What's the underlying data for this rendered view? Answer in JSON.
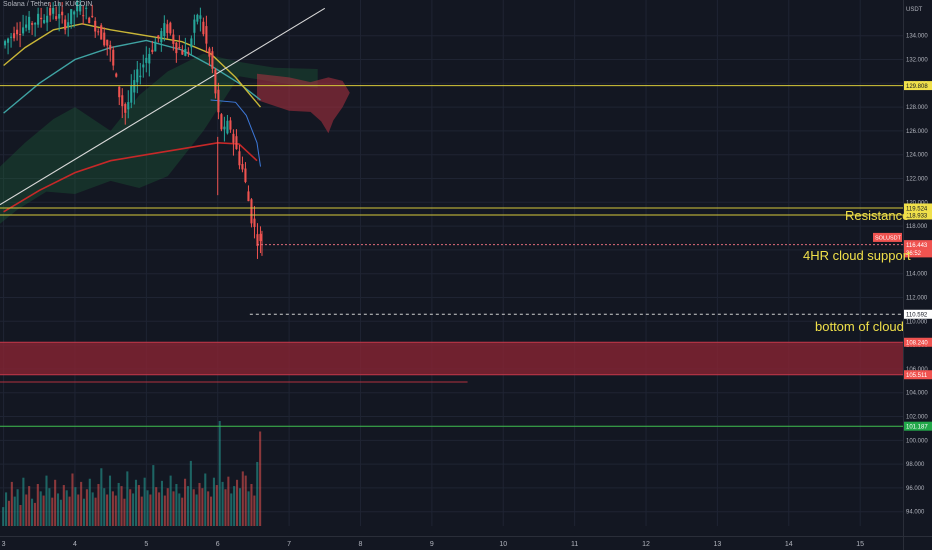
{
  "header": {
    "symbol_title": "Solana / Tether, 1h, KUCOIN",
    "currency": "USDT"
  },
  "colors": {
    "background": "#131722",
    "grid": "#1f2433",
    "up": "#26a69a",
    "down": "#ef5350",
    "annotation": "#f0e04a",
    "level_line": "#d7c93a",
    "support_zone": "#8a2433",
    "trendline": "#d8d8d8",
    "ma_red": "#c62828",
    "ma_yellow": "#c9b637",
    "ma_teal": "#3fa3a3"
  },
  "chart_data": {
    "type": "candlestick",
    "title": "Solana / Tether, 1h, KUCOIN",
    "y_axis": {
      "unit": "USDT",
      "min": 92.8,
      "max": 137.0,
      "ticks": [
        94,
        96,
        98,
        100,
        102,
        104,
        106,
        108,
        110,
        112,
        114,
        116,
        118,
        120,
        122,
        124,
        126,
        128,
        130,
        132,
        134
      ]
    },
    "x_axis": {
      "min": 2.95,
      "max": 15.6,
      "ticks": [
        "3",
        "4",
        "5",
        "6",
        "7",
        "8",
        "9",
        "10",
        "11",
        "12",
        "13",
        "14",
        "15"
      ]
    },
    "price_labels": [
      {
        "text": "129.808",
        "value": 129.808,
        "style": "yellow"
      },
      {
        "text": "119.524",
        "value": 119.524,
        "style": "yellow"
      },
      {
        "text": "118.933",
        "value": 118.933,
        "style": "yellow"
      },
      {
        "text": "SOLUSDT",
        "value": 117.05,
        "style": "red"
      },
      {
        "text": "116.443",
        "value": 116.443,
        "style": "red"
      },
      {
        "text": "36:52",
        "value": 115.75,
        "style": "red"
      },
      {
        "text": "110.592",
        "value": 110.592,
        "style": "white"
      },
      {
        "text": "108.240",
        "value": 108.24,
        "style": "red"
      },
      {
        "text": "105.511",
        "value": 105.511,
        "style": "red"
      },
      {
        "text": "101.187",
        "value": 101.187,
        "style": "green"
      }
    ],
    "horizontal_levels": [
      {
        "value": 129.808,
        "style": "yellow-solid"
      },
      {
        "value": 119.524,
        "style": "yellow-solid"
      },
      {
        "value": 118.933,
        "style": "yellow-solid"
      },
      {
        "value": 116.443,
        "style": "red-dotted"
      },
      {
        "value": 110.592,
        "style": "white-dashed"
      },
      {
        "value": 101.187,
        "style": "green-solid"
      }
    ],
    "support_zone": [
      105.511,
      108.24
    ],
    "annotations": [
      "Resistance",
      "4HR cloud support",
      "bottom of cloud"
    ],
    "price_path": [
      [
        3.0,
        133.2
      ],
      [
        3.2,
        134.5
      ],
      [
        3.45,
        135.2
      ],
      [
        3.7,
        136.0
      ],
      [
        3.9,
        135.0
      ],
      [
        4.05,
        136.5
      ],
      [
        4.2,
        135.8
      ],
      [
        4.35,
        134.5
      ],
      [
        4.5,
        133.0
      ],
      [
        4.62,
        129.5
      ],
      [
        4.72,
        127.5
      ],
      [
        4.85,
        130.0
      ],
      [
        5.0,
        132.0
      ],
      [
        5.15,
        133.5
      ],
      [
        5.3,
        134.8
      ],
      [
        5.45,
        133.0
      ],
      [
        5.6,
        132.5
      ],
      [
        5.75,
        136.2
      ],
      [
        5.85,
        133.5
      ],
      [
        5.95,
        131.0
      ],
      [
        6.0,
        128.5
      ],
      [
        6.05,
        126.5
      ],
      [
        6.12,
        125.8
      ],
      [
        6.18,
        126.8
      ],
      [
        6.24,
        125.2
      ],
      [
        6.3,
        124.0
      ],
      [
        6.38,
        122.5
      ],
      [
        6.44,
        120.5
      ],
      [
        6.5,
        118.5
      ],
      [
        6.56,
        117.2
      ],
      [
        6.6,
        116.6
      ],
      [
        6.62,
        116.44
      ]
    ],
    "ma_red": [
      [
        3.0,
        119.2
      ],
      [
        3.5,
        121.0
      ],
      [
        4.0,
        122.5
      ],
      [
        4.5,
        123.5
      ],
      [
        5.0,
        124.0
      ],
      [
        5.5,
        124.5
      ],
      [
        6.0,
        125.0
      ],
      [
        6.3,
        124.9
      ],
      [
        6.55,
        123.5
      ]
    ],
    "ma_teal": [
      [
        3.0,
        127.5
      ],
      [
        3.5,
        130.0
      ],
      [
        4.0,
        132.0
      ],
      [
        4.5,
        133.0
      ],
      [
        5.0,
        133.6
      ],
      [
        5.5,
        132.8
      ],
      [
        5.9,
        131.5
      ],
      [
        6.3,
        130.0
      ],
      [
        6.6,
        128.6
      ]
    ],
    "ma_yellow": [
      [
        3.0,
        131.5
      ],
      [
        3.3,
        133.0
      ],
      [
        3.7,
        134.5
      ],
      [
        4.1,
        135.0
      ],
      [
        4.5,
        134.5
      ],
      [
        5.0,
        134.0
      ],
      [
        5.5,
        133.5
      ],
      [
        5.9,
        132.5
      ],
      [
        6.25,
        130.5
      ],
      [
        6.6,
        128.0
      ]
    ],
    "trendline": [
      [
        2.95,
        119.8
      ],
      [
        7.5,
        136.3
      ]
    ],
    "volume": {
      "max": 100,
      "series": [
        18,
        32,
        24,
        42,
        28,
        35,
        20,
        46,
        30,
        38,
        26,
        22,
        40,
        33,
        29,
        48,
        36,
        27,
        44,
        31,
        25,
        39,
        34,
        28,
        50,
        37,
        30,
        42,
        26,
        35,
        45,
        32,
        27,
        40,
        55,
        36,
        30,
        48,
        33,
        29,
        41,
        38,
        26,
        52,
        35,
        31,
        44,
        39,
        28,
        46,
        34,
        30,
        58,
        37,
        32,
        43,
        29,
        36,
        48,
        33,
        40,
        31,
        27,
        45,
        38,
        62,
        35,
        30,
        41,
        36,
        50,
        33,
        28,
        46,
        39,
        100,
        42,
        35,
        47,
        31,
        38,
        44,
        36,
        52,
        48,
        33,
        40,
        29,
        61,
        90
      ]
    }
  }
}
